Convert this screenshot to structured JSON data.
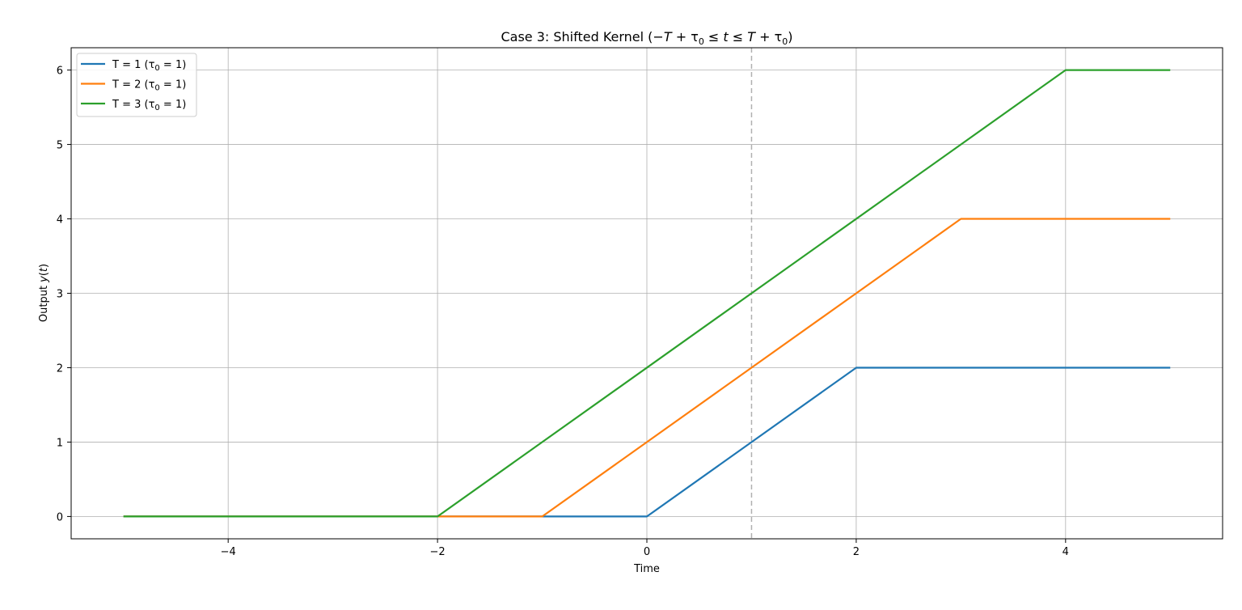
{
  "chart_data": {
    "type": "line",
    "title_prefix": "Case 3: Shifted Kernel (",
    "title_math": "−T + τ0 ≤ t ≤ T + τ0",
    "title_suffix": ")",
    "xlabel": "Time",
    "ylabel_prefix": "Output ",
    "ylabel_math": "y(t)",
    "xlim": [
      -5.5,
      5.5
    ],
    "ylim": [
      -0.3,
      6.3
    ],
    "xticks": [
      -4,
      -2,
      0,
      2,
      4
    ],
    "xtick_labels": [
      "−4",
      "−2",
      "0",
      "2",
      "4"
    ],
    "yticks": [
      0,
      1,
      2,
      3,
      4,
      5,
      6
    ],
    "ytick_labels": [
      "0",
      "1",
      "2",
      "3",
      "4",
      "5",
      "6"
    ],
    "grid": true,
    "legend_position": "upper-left",
    "vline": {
      "x": 1,
      "style": "dashed",
      "color": "#b0b0b0"
    },
    "series": [
      {
        "name": "T = 1 (τ0 = 1)",
        "legend_prefix": "T = 1 (",
        "legend_tau": "τ",
        "legend_sub": "0",
        "legend_suffix": " = 1)",
        "color": "#1f77b4",
        "x": [
          -5,
          0,
          2,
          5
        ],
        "y": [
          0,
          0,
          2,
          2
        ]
      },
      {
        "name": "T = 2 (τ0 = 1)",
        "legend_prefix": "T = 2 (",
        "legend_tau": "τ",
        "legend_sub": "0",
        "legend_suffix": " = 1)",
        "color": "#ff7f0e",
        "x": [
          -5,
          -1,
          3,
          5
        ],
        "y": [
          0,
          0,
          4,
          4
        ]
      },
      {
        "name": "T = 3 (τ0 = 1)",
        "legend_prefix": "T = 3 (",
        "legend_tau": "τ",
        "legend_sub": "0",
        "legend_suffix": " = 1)",
        "color": "#2ca02c",
        "x": [
          -5,
          -2,
          4,
          5
        ],
        "y": [
          0,
          0,
          6,
          6
        ]
      }
    ]
  }
}
